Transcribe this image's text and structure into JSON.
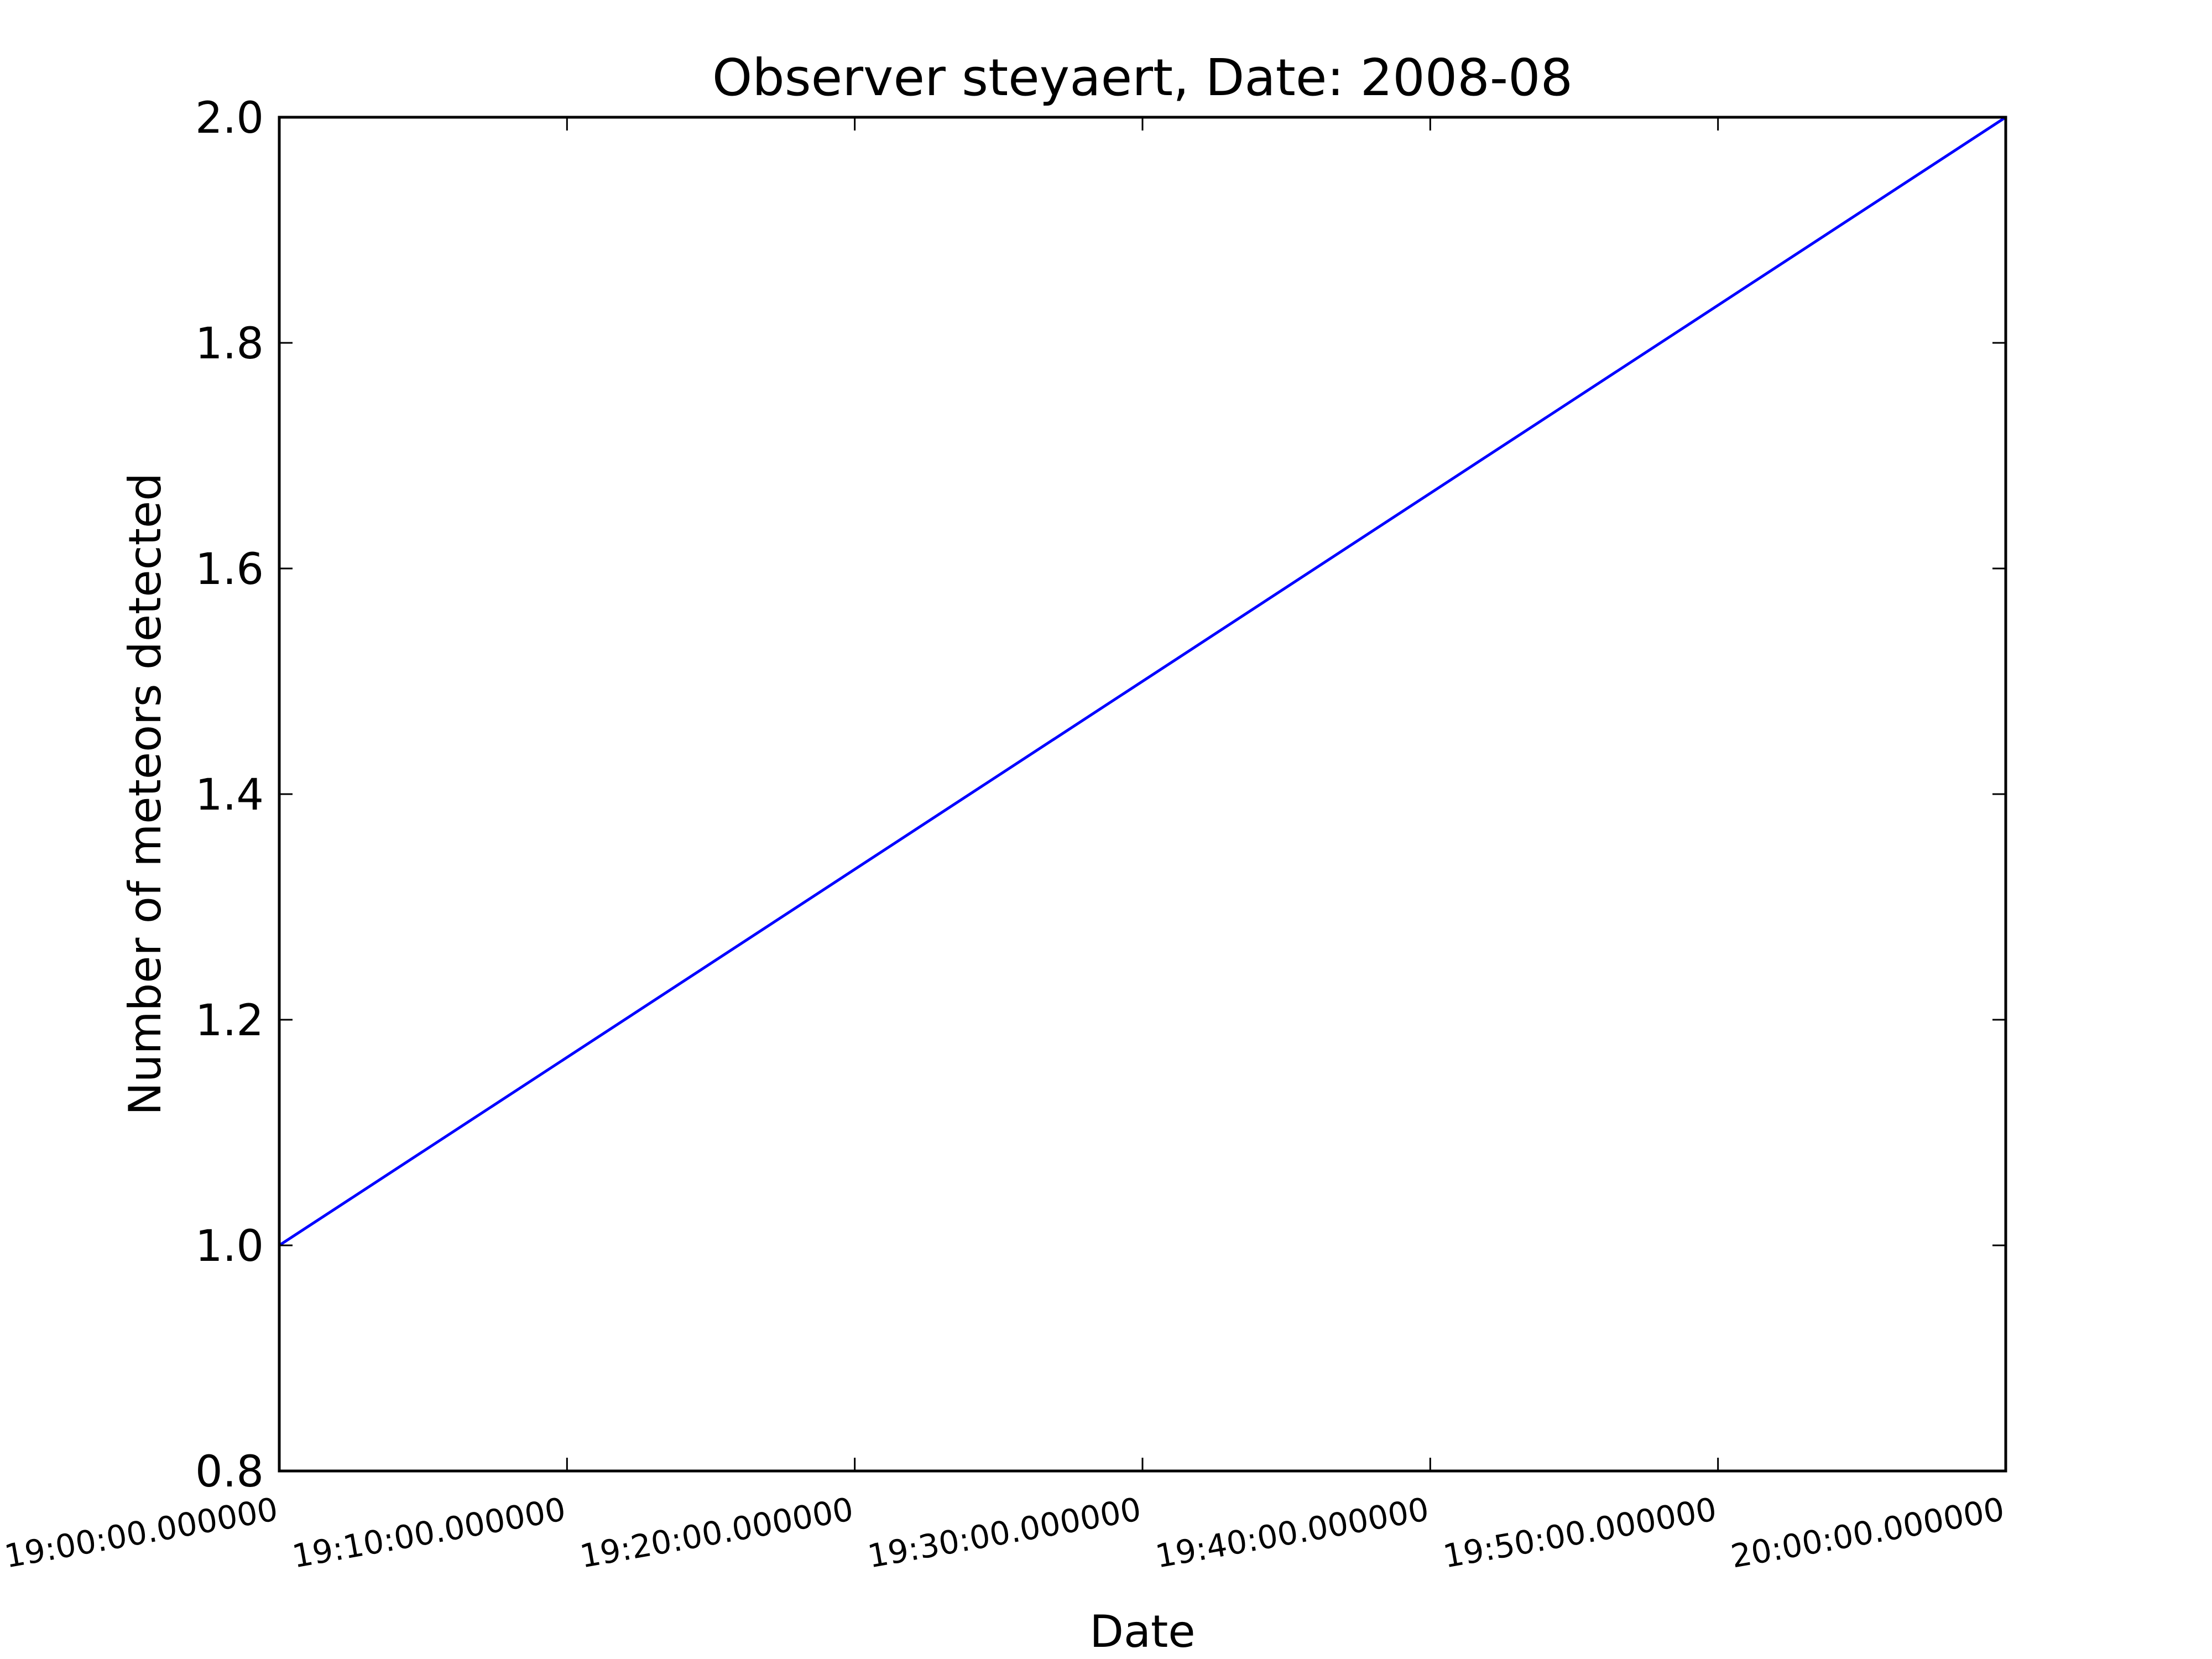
{
  "chart_data": {
    "type": "line",
    "title": "Observer steyaert, Date: 2008-08",
    "xlabel": "Date",
    "ylabel": "Number of meteors detected",
    "x_tick_labels": [
      "19:00:00.000000",
      "19:10:00.000000",
      "19:20:00.000000",
      "19:30:00.000000",
      "19:40:00.000000",
      "19:50:00.000000",
      "20:00:00.000000"
    ],
    "y_ticks": [
      0.8,
      1.0,
      1.2,
      1.4,
      1.6,
      1.8,
      2.0
    ],
    "y_tick_labels": [
      "0.8",
      "1.0",
      "1.2",
      "1.4",
      "1.6",
      "1.8",
      "2.0"
    ],
    "xlim": [
      "19:00:00.000000",
      "20:00:00.000000"
    ],
    "ylim": [
      0.8,
      2.0
    ],
    "grid": false,
    "series": [
      {
        "color": "#0000ff",
        "x": [
          "19:00:00.000000",
          "20:00:00.000000"
        ],
        "y": [
          1.0,
          2.0
        ]
      }
    ]
  }
}
